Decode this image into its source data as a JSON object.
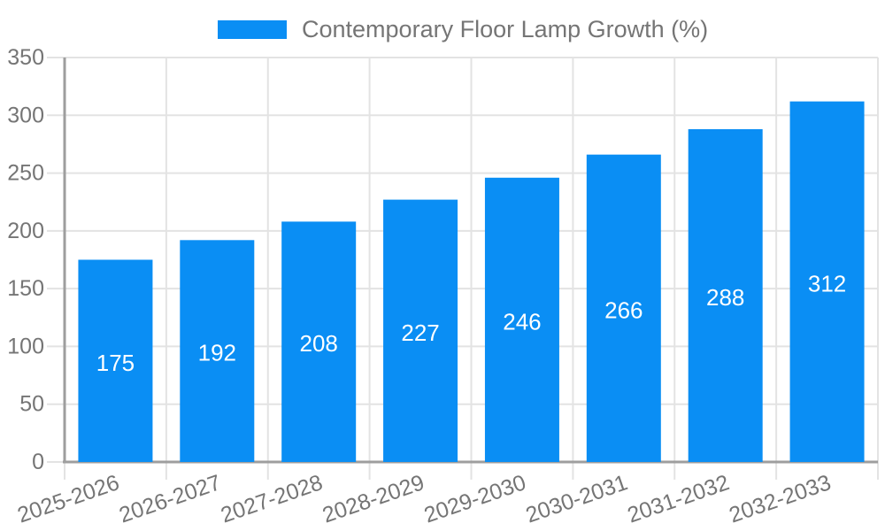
{
  "chart_data": {
    "type": "bar",
    "title": "Contemporary Floor Lamp Growth (%)",
    "categories": [
      "2025-2026",
      "2026-2027",
      "2027-2028",
      "2028-2029",
      "2029-2030",
      "2030-2031",
      "2031-2032",
      "2032-2033"
    ],
    "values": [
      175,
      192,
      208,
      227,
      246,
      266,
      288,
      312
    ],
    "ylim": [
      0,
      350
    ],
    "yticks": [
      0,
      50,
      100,
      150,
      200,
      250,
      300,
      350
    ],
    "grid": true,
    "legend_position": "top",
    "value_label_position": "inside-center",
    "x_label_rotation_deg": -19,
    "colors": {
      "bar": "#0a8ef4",
      "value_label": "#ffffff",
      "axis_line": "#9e9e9e",
      "gridline": "#e3e3e3",
      "tick_text": "#757575",
      "legend_text": "#757575",
      "background": "#ffffff"
    }
  }
}
